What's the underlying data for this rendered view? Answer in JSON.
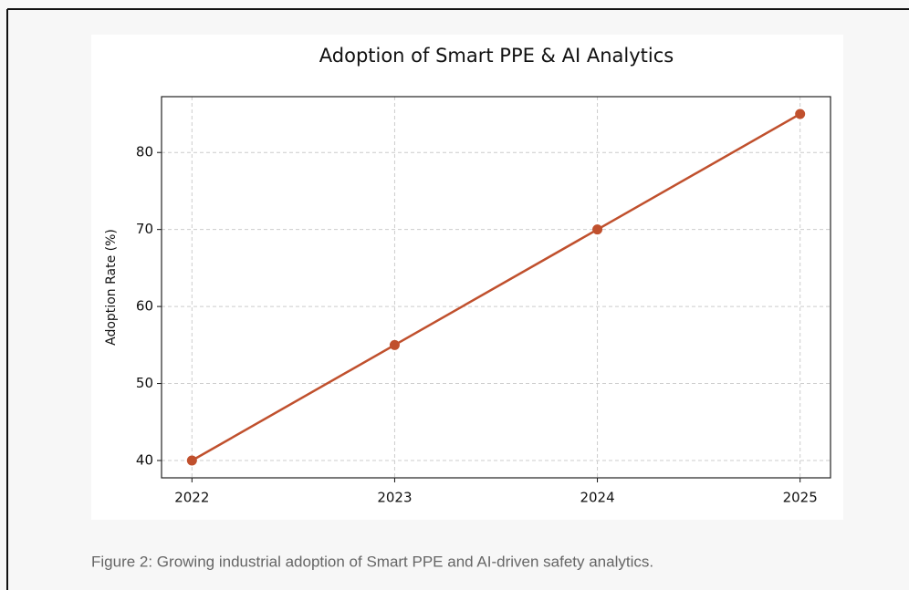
{
  "chart_data": {
    "type": "line",
    "title": "Adoption of Smart PPE & AI Analytics",
    "ylabel": "Adoption Rate (%)",
    "x": [
      2022,
      2023,
      2024,
      2025
    ],
    "values": [
      40,
      55,
      70,
      85
    ],
    "color": "#c0502d",
    "xlim": [
      2021.85,
      2025.15
    ],
    "xticks": [
      2022,
      2023,
      2024,
      2025
    ],
    "ylim": [
      37.75,
      87.25
    ],
    "yticks": [
      40,
      50,
      60,
      70,
      80
    ],
    "grid": true
  },
  "caption": "Figure 2: Growing industrial adoption of Smart PPE and AI-driven safety analytics."
}
